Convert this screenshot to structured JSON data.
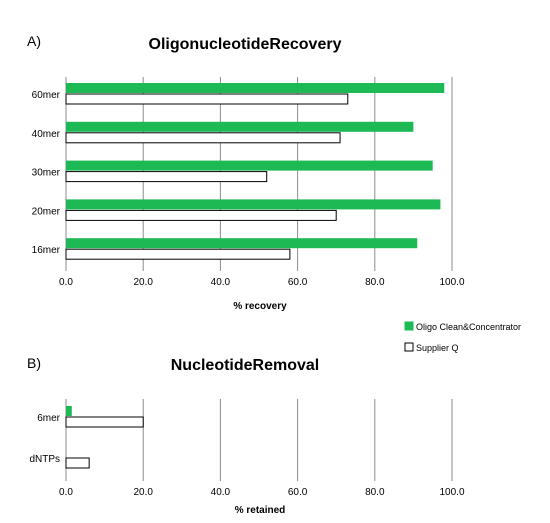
{
  "panel_labels": [
    "A)",
    "B)"
  ],
  "legend": {
    "items": [
      {
        "label": "Oligo Clean&Concentrator",
        "color": "#1db954",
        "style": "filled"
      },
      {
        "label": "Supplier Q",
        "color": "#ffffff",
        "style": "outline"
      }
    ]
  },
  "chart_data": [
    {
      "type": "bar",
      "orientation": "horizontal",
      "title": "OligonucleotideRecovery",
      "xlabel": "% recovery",
      "ylabel": "",
      "categories": [
        "60mer",
        "40mer",
        "30mer",
        "20mer",
        "16mer"
      ],
      "series": [
        {
          "name": "Oligo Clean&Concentrator",
          "values": [
            98,
            90,
            95,
            97,
            91
          ]
        },
        {
          "name": "Supplier Q",
          "values": [
            73,
            71,
            52,
            70,
            58
          ]
        }
      ],
      "xlim": [
        0,
        100
      ],
      "xticks": [
        "0.0",
        "20.0",
        "40.0",
        "60.0",
        "80.0",
        "100.0"
      ],
      "grid": true
    },
    {
      "type": "bar",
      "orientation": "horizontal",
      "title": "NucleotideRemoval",
      "xlabel": "% retained",
      "ylabel": "",
      "categories": [
        "6mer",
        "dNTPs"
      ],
      "series": [
        {
          "name": "Oligo Clean&Concentrator",
          "values": [
            1.5,
            0
          ]
        },
        {
          "name": "Supplier Q",
          "values": [
            20,
            6
          ]
        }
      ],
      "xlim": [
        0,
        100
      ],
      "xticks": [
        "0.0",
        "20.0",
        "40.0",
        "60.0",
        "80.0",
        "100.0"
      ],
      "grid": true
    }
  ]
}
